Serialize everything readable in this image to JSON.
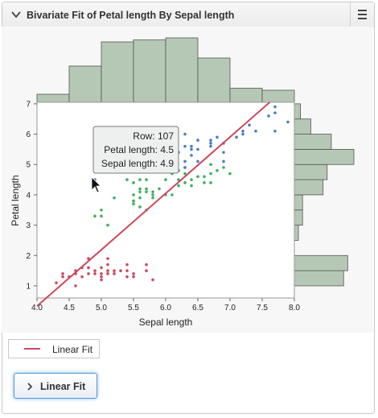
{
  "header": {
    "title": "Bivariate Fit of Petal length By Sepal length",
    "collapse_icon": "chevron-down-icon",
    "menu_icon": "hamburger-menu-icon"
  },
  "colors": {
    "setosa": "#cc4a5e",
    "versicolor": "#3fae5d",
    "virginica": "#4a7cc7",
    "fit_line": "#cc4a5e",
    "hist_fill": "#b5c8b5",
    "hist_stroke": "#555555"
  },
  "chart_data": {
    "type": "scatter",
    "xlabel": "Sepal length",
    "ylabel": "Petal length",
    "xlim": [
      4.0,
      8.0
    ],
    "ylim": [
      0.6,
      7.05
    ],
    "x_ticks": [
      "4.0",
      "4.5",
      "5.0",
      "5.5",
      "6.0",
      "6.5",
      "7.0",
      "7.5",
      "8.0"
    ],
    "y_ticks": [
      "1",
      "2",
      "3",
      "4",
      "5",
      "6",
      "7"
    ],
    "series": [
      {
        "color_key": "setosa",
        "points": [
          [
            4.3,
            1.1
          ],
          [
            4.4,
            1.4
          ],
          [
            4.4,
            1.3
          ],
          [
            4.5,
            1.3
          ],
          [
            4.6,
            1.4
          ],
          [
            4.6,
            1.5
          ],
          [
            4.6,
            1.0
          ],
          [
            4.7,
            1.3
          ],
          [
            4.7,
            1.6
          ],
          [
            4.8,
            1.6
          ],
          [
            4.8,
            1.4
          ],
          [
            4.8,
            1.9
          ],
          [
            4.9,
            1.4
          ],
          [
            4.9,
            1.5
          ],
          [
            5.0,
            1.4
          ],
          [
            5.0,
            1.2
          ],
          [
            5.0,
            1.6
          ],
          [
            5.0,
            1.3
          ],
          [
            5.1,
            1.4
          ],
          [
            5.1,
            1.5
          ],
          [
            5.1,
            1.7
          ],
          [
            5.1,
            1.9
          ],
          [
            5.2,
            1.5
          ],
          [
            5.2,
            1.4
          ],
          [
            5.3,
            1.5
          ],
          [
            5.4,
            1.7
          ],
          [
            5.4,
            1.5
          ],
          [
            5.4,
            1.3
          ],
          [
            5.5,
            1.4
          ],
          [
            5.5,
            1.3
          ],
          [
            5.7,
            1.5
          ],
          [
            5.7,
            1.7
          ],
          [
            5.8,
            1.2
          ]
        ]
      },
      {
        "color_key": "versicolor",
        "points": [
          [
            4.9,
            3.3
          ],
          [
            5.0,
            3.5
          ],
          [
            5.0,
            3.3
          ],
          [
            5.1,
            3.0
          ],
          [
            5.2,
            3.9
          ],
          [
            5.4,
            4.5
          ],
          [
            5.5,
            4.0
          ],
          [
            5.5,
            3.8
          ],
          [
            5.5,
            3.7
          ],
          [
            5.5,
            4.4
          ],
          [
            5.6,
            4.5
          ],
          [
            5.6,
            3.9
          ],
          [
            5.6,
            4.2
          ],
          [
            5.6,
            4.1
          ],
          [
            5.6,
            3.6
          ],
          [
            5.7,
            4.5
          ],
          [
            5.7,
            3.5
          ],
          [
            5.7,
            4.2
          ],
          [
            5.7,
            4.1
          ],
          [
            5.8,
            4.1
          ],
          [
            5.8,
            3.9
          ],
          [
            5.8,
            4.0
          ],
          [
            5.9,
            4.8
          ],
          [
            5.9,
            4.2
          ],
          [
            6.0,
            4.0
          ],
          [
            6.0,
            4.5
          ],
          [
            6.0,
            5.1
          ],
          [
            6.1,
            4.7
          ],
          [
            6.1,
            4.0
          ],
          [
            6.2,
            4.5
          ],
          [
            6.2,
            4.3
          ],
          [
            6.3,
            4.7
          ],
          [
            6.3,
            4.9
          ],
          [
            6.3,
            4.4
          ],
          [
            6.4,
            4.5
          ],
          [
            6.4,
            4.3
          ],
          [
            6.5,
            4.6
          ],
          [
            6.6,
            4.6
          ],
          [
            6.6,
            4.4
          ],
          [
            6.7,
            4.4
          ],
          [
            6.7,
            4.7
          ],
          [
            6.7,
            5.0
          ],
          [
            6.8,
            4.8
          ],
          [
            6.9,
            4.9
          ],
          [
            7.0,
            4.7
          ]
        ]
      },
      {
        "color_key": "virginica",
        "points": [
          [
            4.9,
            4.5
          ],
          [
            5.6,
            4.9
          ],
          [
            5.7,
            5.0
          ],
          [
            5.8,
            5.1
          ],
          [
            5.8,
            5.1
          ],
          [
            5.9,
            5.1
          ],
          [
            6.0,
            4.8
          ],
          [
            6.0,
            5.0
          ],
          [
            6.1,
            5.6
          ],
          [
            6.1,
            4.9
          ],
          [
            6.2,
            4.8
          ],
          [
            6.2,
            5.4
          ],
          [
            6.3,
            6.0
          ],
          [
            6.3,
            5.6
          ],
          [
            6.3,
            5.1
          ],
          [
            6.3,
            4.9
          ],
          [
            6.4,
            5.6
          ],
          [
            6.4,
            5.3
          ],
          [
            6.4,
            5.5
          ],
          [
            6.5,
            5.8
          ],
          [
            6.5,
            5.5
          ],
          [
            6.5,
            5.1
          ],
          [
            6.7,
            5.8
          ],
          [
            6.7,
            5.7
          ],
          [
            6.7,
            5.6
          ],
          [
            6.8,
            5.9
          ],
          [
            6.9,
            5.7
          ],
          [
            6.9,
            5.4
          ],
          [
            6.9,
            5.1
          ],
          [
            7.1,
            5.9
          ],
          [
            7.2,
            6.1
          ],
          [
            7.2,
            6.0
          ],
          [
            7.3,
            6.3
          ],
          [
            7.4,
            6.1
          ],
          [
            7.6,
            6.6
          ],
          [
            7.7,
            6.7
          ],
          [
            7.7,
            6.9
          ],
          [
            7.7,
            6.1
          ],
          [
            7.9,
            6.4
          ]
        ]
      }
    ],
    "fit_line": {
      "name": "Linear Fit",
      "intercept": -7.101,
      "slope": 1.858
    },
    "top_histogram": {
      "bins": [
        [
          4.0,
          4.5
        ],
        [
          4.5,
          5.0
        ],
        [
          5.0,
          5.5
        ],
        [
          5.5,
          6.0
        ],
        [
          6.0,
          6.5
        ],
        [
          6.5,
          7.0
        ],
        [
          7.0,
          7.5
        ],
        [
          7.5,
          8.0
        ]
      ],
      "counts": [
        4,
        18,
        30,
        31,
        32,
        22,
        7,
        6
      ]
    },
    "right_histogram": {
      "bins": [
        [
          1.0,
          1.5
        ],
        [
          1.5,
          2.0
        ],
        [
          2.5,
          3.0
        ],
        [
          3.0,
          3.5
        ],
        [
          3.5,
          4.0
        ],
        [
          4.0,
          4.5
        ],
        [
          4.5,
          5.0
        ],
        [
          5.0,
          5.5
        ],
        [
          5.5,
          6.0
        ],
        [
          6.0,
          6.5
        ],
        [
          6.5,
          7.0
        ]
      ],
      "counts": [
        24,
        26,
        2,
        4,
        4,
        14,
        16,
        29,
        18,
        8,
        3
      ]
    }
  },
  "tooltip": {
    "row": "Row: 107",
    "petal": "Petal length: 4.5",
    "sepal": "Sepal length: 4.9"
  },
  "legend": {
    "label": "Linear Fit"
  },
  "report_button": {
    "label": "Linear Fit",
    "icon": "chevron-right-icon"
  }
}
